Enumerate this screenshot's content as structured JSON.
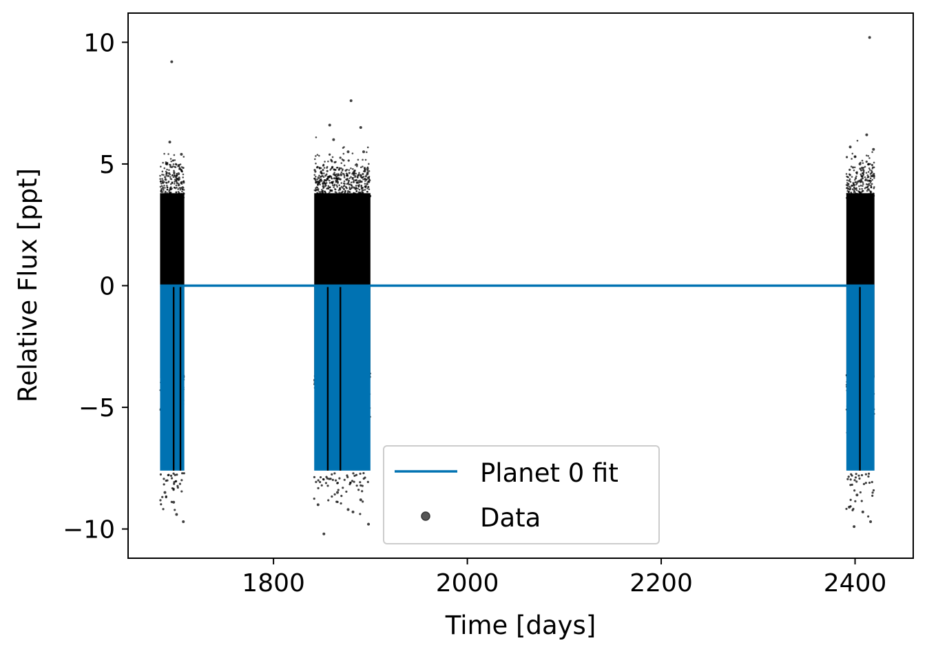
{
  "chart_data": {
    "type": "scatter",
    "title": "",
    "xlabel": "Time [days]",
    "ylabel": "Relative Flux [ppt]",
    "xlim": [
      1650,
      2460
    ],
    "ylim": [
      -11.2,
      11.2
    ],
    "xticks": [
      1800,
      2000,
      2200,
      2400
    ],
    "yticks": [
      10,
      5,
      0,
      -5,
      -10
    ],
    "xtick_labels": [
      "1800",
      "2000",
      "2200",
      "2400"
    ],
    "ytick_labels": [
      "10",
      "5",
      "0",
      "−5",
      "−10"
    ],
    "grid": false,
    "legend_placement": "lower-center",
    "colors": {
      "fit": "#0072b2",
      "data": "#000000"
    },
    "series": [
      {
        "name": "Planet 0 fit",
        "kind": "line",
        "baseline": 0,
        "transit_depth": -7.6,
        "segments": [
          {
            "start": 1683,
            "end": 1708
          },
          {
            "start": 1842,
            "end": 1900
          },
          {
            "start": 2391,
            "end": 2420
          }
        ],
        "gaps": [
          1697,
          1704,
          1856,
          1869,
          2405
        ]
      },
      {
        "name": "Data",
        "kind": "scatter",
        "typical_range": [
          -3.8,
          3.8
        ],
        "segments": [
          {
            "start": 1683,
            "end": 1708
          },
          {
            "start": 1842,
            "end": 1900
          },
          {
            "start": 2391,
            "end": 2420
          }
        ],
        "outliers": [
          {
            "x": 1695,
            "y": 9.2
          },
          {
            "x": 1693,
            "y": 5.9
          },
          {
            "x": 1705,
            "y": 5.4
          },
          {
            "x": 1690,
            "y": 5.0
          },
          {
            "x": 1702,
            "y": 4.6
          },
          {
            "x": 1688,
            "y": -8.5
          },
          {
            "x": 1700,
            "y": -9.4
          },
          {
            "x": 1707,
            "y": -9.7
          },
          {
            "x": 1697,
            "y": -8.9
          },
          {
            "x": 1858,
            "y": 6.6
          },
          {
            "x": 1862,
            "y": 6.0
          },
          {
            "x": 1880,
            "y": 7.6
          },
          {
            "x": 1890,
            "y": 6.5
          },
          {
            "x": 1877,
            "y": 5.5
          },
          {
            "x": 1893,
            "y": 5.5
          },
          {
            "x": 1897,
            "y": 4.8
          },
          {
            "x": 1848,
            "y": 4.3
          },
          {
            "x": 1852,
            "y": -10.2
          },
          {
            "x": 1898,
            "y": -9.8
          },
          {
            "x": 1846,
            "y": -9.0
          },
          {
            "x": 1877,
            "y": -9.2
          },
          {
            "x": 1882,
            "y": -9.3
          },
          {
            "x": 1890,
            "y": -8.8
          },
          {
            "x": 1866,
            "y": -8.5
          },
          {
            "x": 2415,
            "y": 10.2
          },
          {
            "x": 2412,
            "y": 6.2
          },
          {
            "x": 2395,
            "y": 5.7
          },
          {
            "x": 2400,
            "y": 5.3
          },
          {
            "x": 2419,
            "y": 5.6
          },
          {
            "x": 2405,
            "y": 5.0
          },
          {
            "x": 2399,
            "y": -9.9
          },
          {
            "x": 2416,
            "y": -9.7
          },
          {
            "x": 2394,
            "y": -9.1
          },
          {
            "x": 2408,
            "y": -9.3
          },
          {
            "x": 2402,
            "y": -8.6
          }
        ]
      }
    ],
    "legend": [
      {
        "label": "Planet 0 fit",
        "marker": "line"
      },
      {
        "label": "Data",
        "marker": "dot"
      }
    ]
  }
}
